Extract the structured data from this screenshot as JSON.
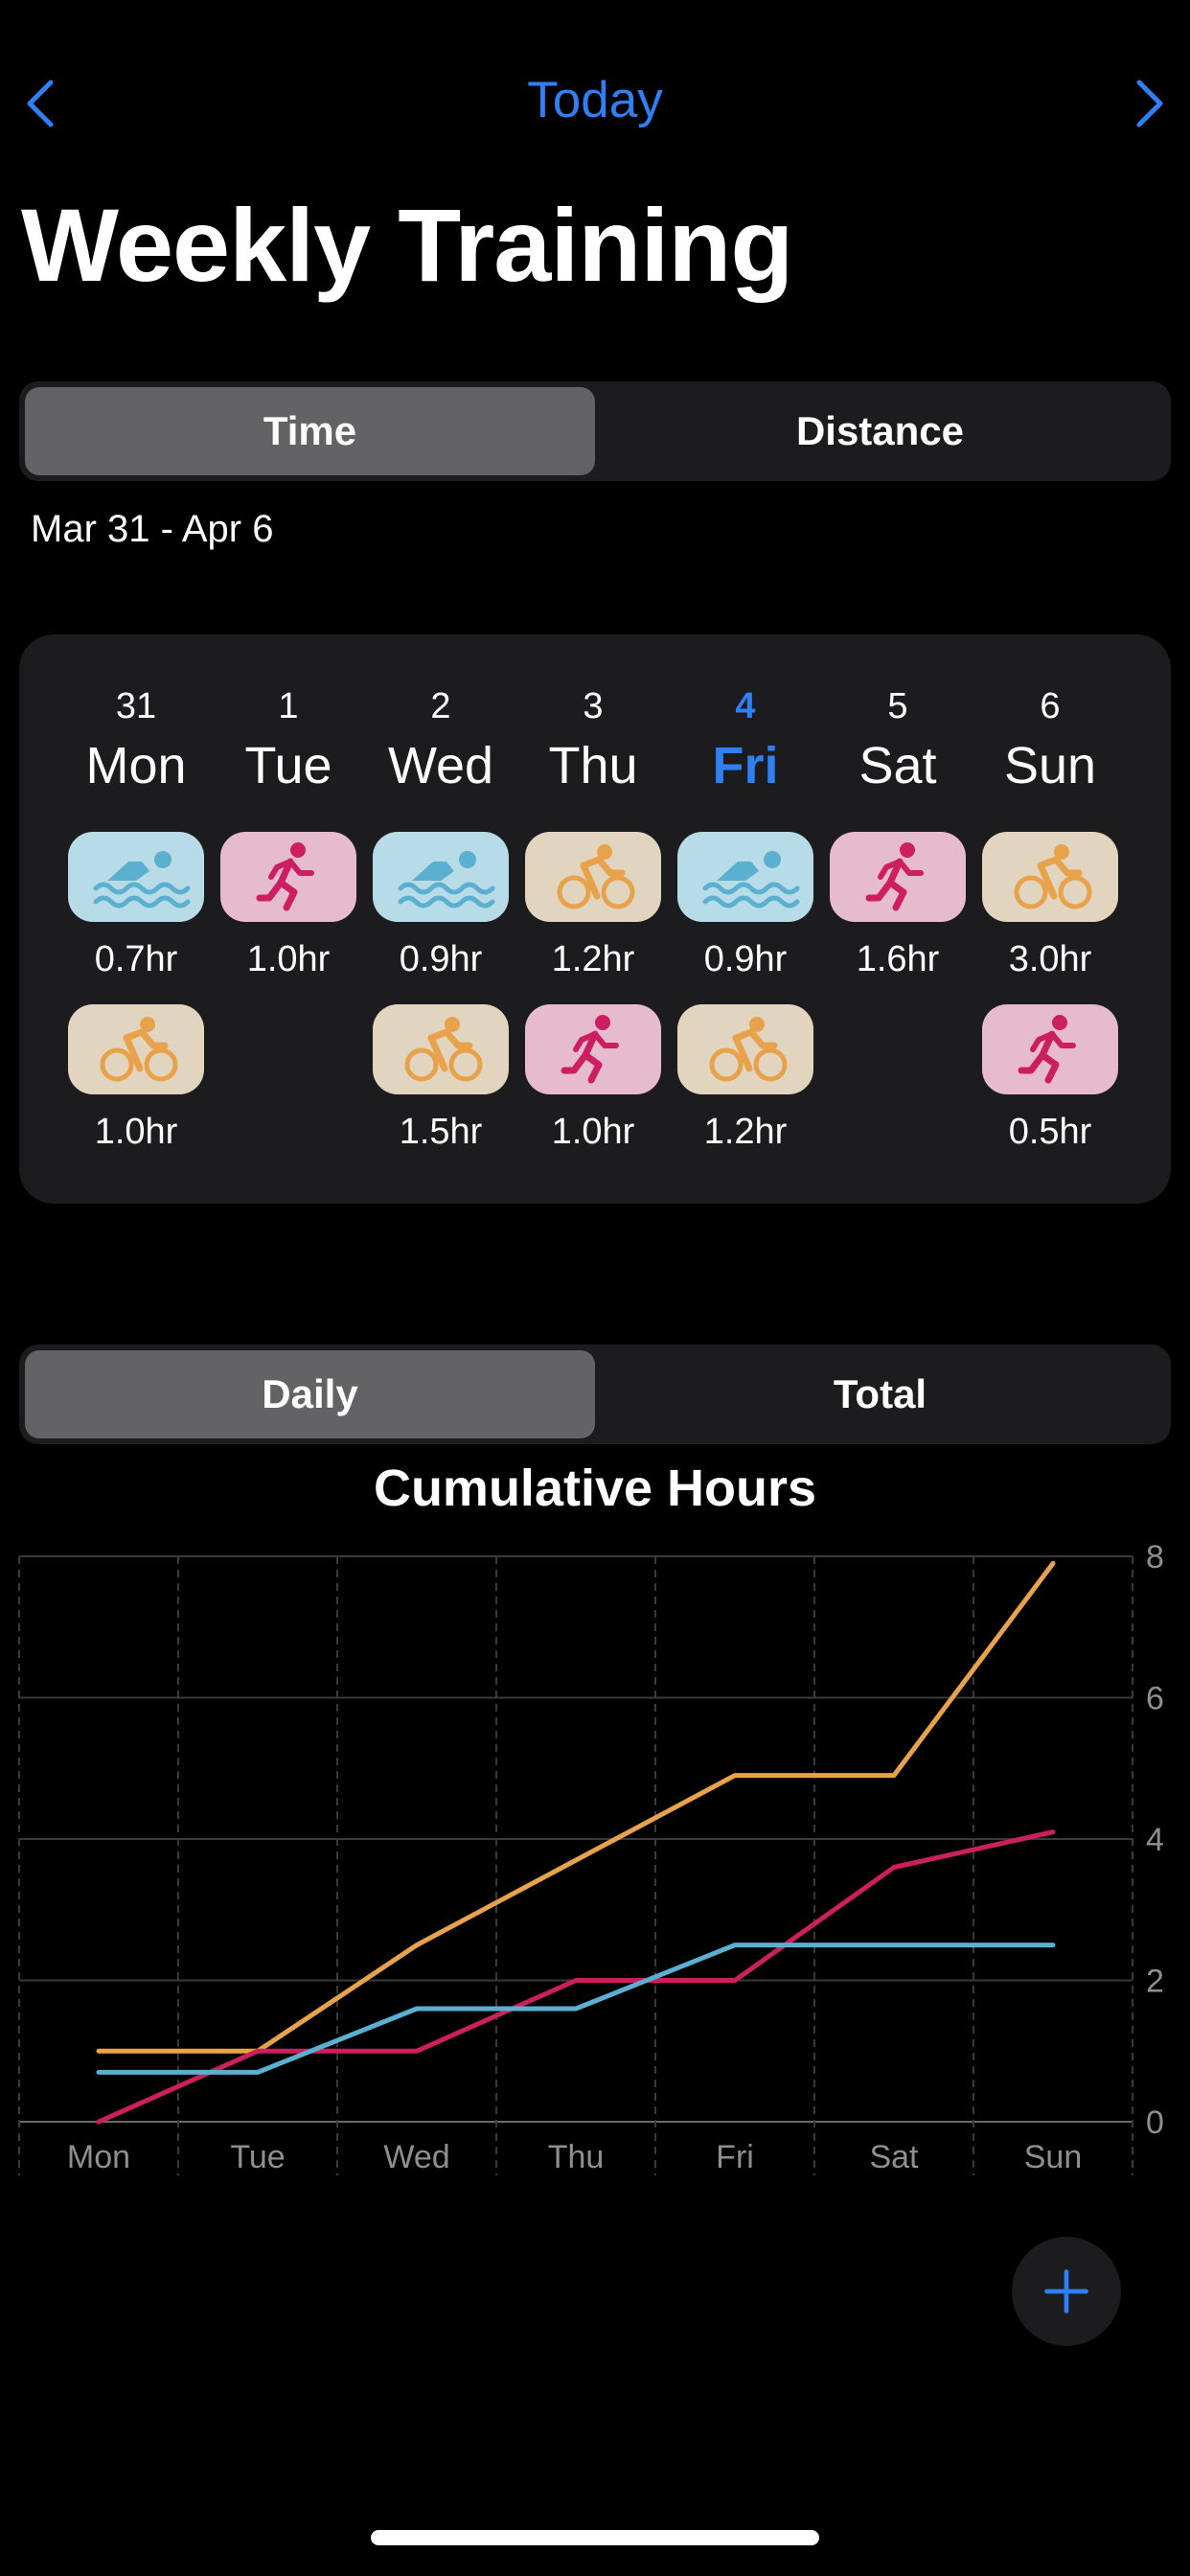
{
  "nav": {
    "today_label": "Today",
    "prev_icon": "chevron-left-icon",
    "next_icon": "chevron-right-icon"
  },
  "title": "Weekly Training",
  "metric_toggle": {
    "options": [
      "Time",
      "Distance"
    ],
    "selected": "Time"
  },
  "date_range": "Mar 31 - Apr 6",
  "colors": {
    "accent": "#2f7ff5",
    "swim": "#5bafcf",
    "bike": "#e8a24b",
    "run": "#cc1f5d",
    "swim_bg": "#b8dbe8",
    "bike_bg": "#e2d5c0",
    "run_bg": "#e6bccd"
  },
  "week": {
    "days": [
      {
        "num": "31",
        "name": "Mon",
        "today": false,
        "workouts": [
          {
            "sport": "swim",
            "duration": "0.7hr"
          },
          {
            "sport": "bike",
            "duration": "1.0hr"
          }
        ]
      },
      {
        "num": "1",
        "name": "Tue",
        "today": false,
        "workouts": [
          {
            "sport": "run",
            "duration": "1.0hr"
          }
        ]
      },
      {
        "num": "2",
        "name": "Wed",
        "today": false,
        "workouts": [
          {
            "sport": "swim",
            "duration": "0.9hr"
          },
          {
            "sport": "bike",
            "duration": "1.5hr"
          }
        ]
      },
      {
        "num": "3",
        "name": "Thu",
        "today": false,
        "workouts": [
          {
            "sport": "bike",
            "duration": "1.2hr"
          },
          {
            "sport": "run",
            "duration": "1.0hr"
          }
        ]
      },
      {
        "num": "4",
        "name": "Fri",
        "today": true,
        "workouts": [
          {
            "sport": "swim",
            "duration": "0.9hr"
          },
          {
            "sport": "bike",
            "duration": "1.2hr"
          }
        ]
      },
      {
        "num": "5",
        "name": "Sat",
        "today": false,
        "workouts": [
          {
            "sport": "run",
            "duration": "1.6hr"
          }
        ]
      },
      {
        "num": "6",
        "name": "Sun",
        "today": false,
        "workouts": [
          {
            "sport": "bike",
            "duration": "3.0hr"
          },
          {
            "sport": "run",
            "duration": "0.5hr"
          }
        ]
      }
    ]
  },
  "mode_toggle": {
    "options": [
      "Daily",
      "Total"
    ],
    "selected": "Daily"
  },
  "chart_data": {
    "type": "line",
    "title": "Cumulative Hours",
    "categories": [
      "Mon",
      "Tue",
      "Wed",
      "Thu",
      "Fri",
      "Sat",
      "Sun"
    ],
    "ylim": [
      0,
      8
    ],
    "yticks": [
      0,
      2,
      4,
      6,
      8
    ],
    "grid": true,
    "series": [
      {
        "sport": "bike",
        "color": "#e8a24b",
        "values": [
          1.0,
          1.0,
          2.5,
          3.7,
          4.9,
          4.9,
          7.9
        ]
      },
      {
        "sport": "run",
        "color": "#cc1f5d",
        "values": [
          0.0,
          1.0,
          1.0,
          2.0,
          2.0,
          3.6,
          4.1
        ]
      },
      {
        "sport": "swim",
        "color": "#5bafcf",
        "values": [
          0.7,
          0.7,
          1.6,
          1.6,
          2.5,
          2.5,
          2.5
        ]
      }
    ]
  },
  "fab": {
    "icon": "plus-icon"
  }
}
